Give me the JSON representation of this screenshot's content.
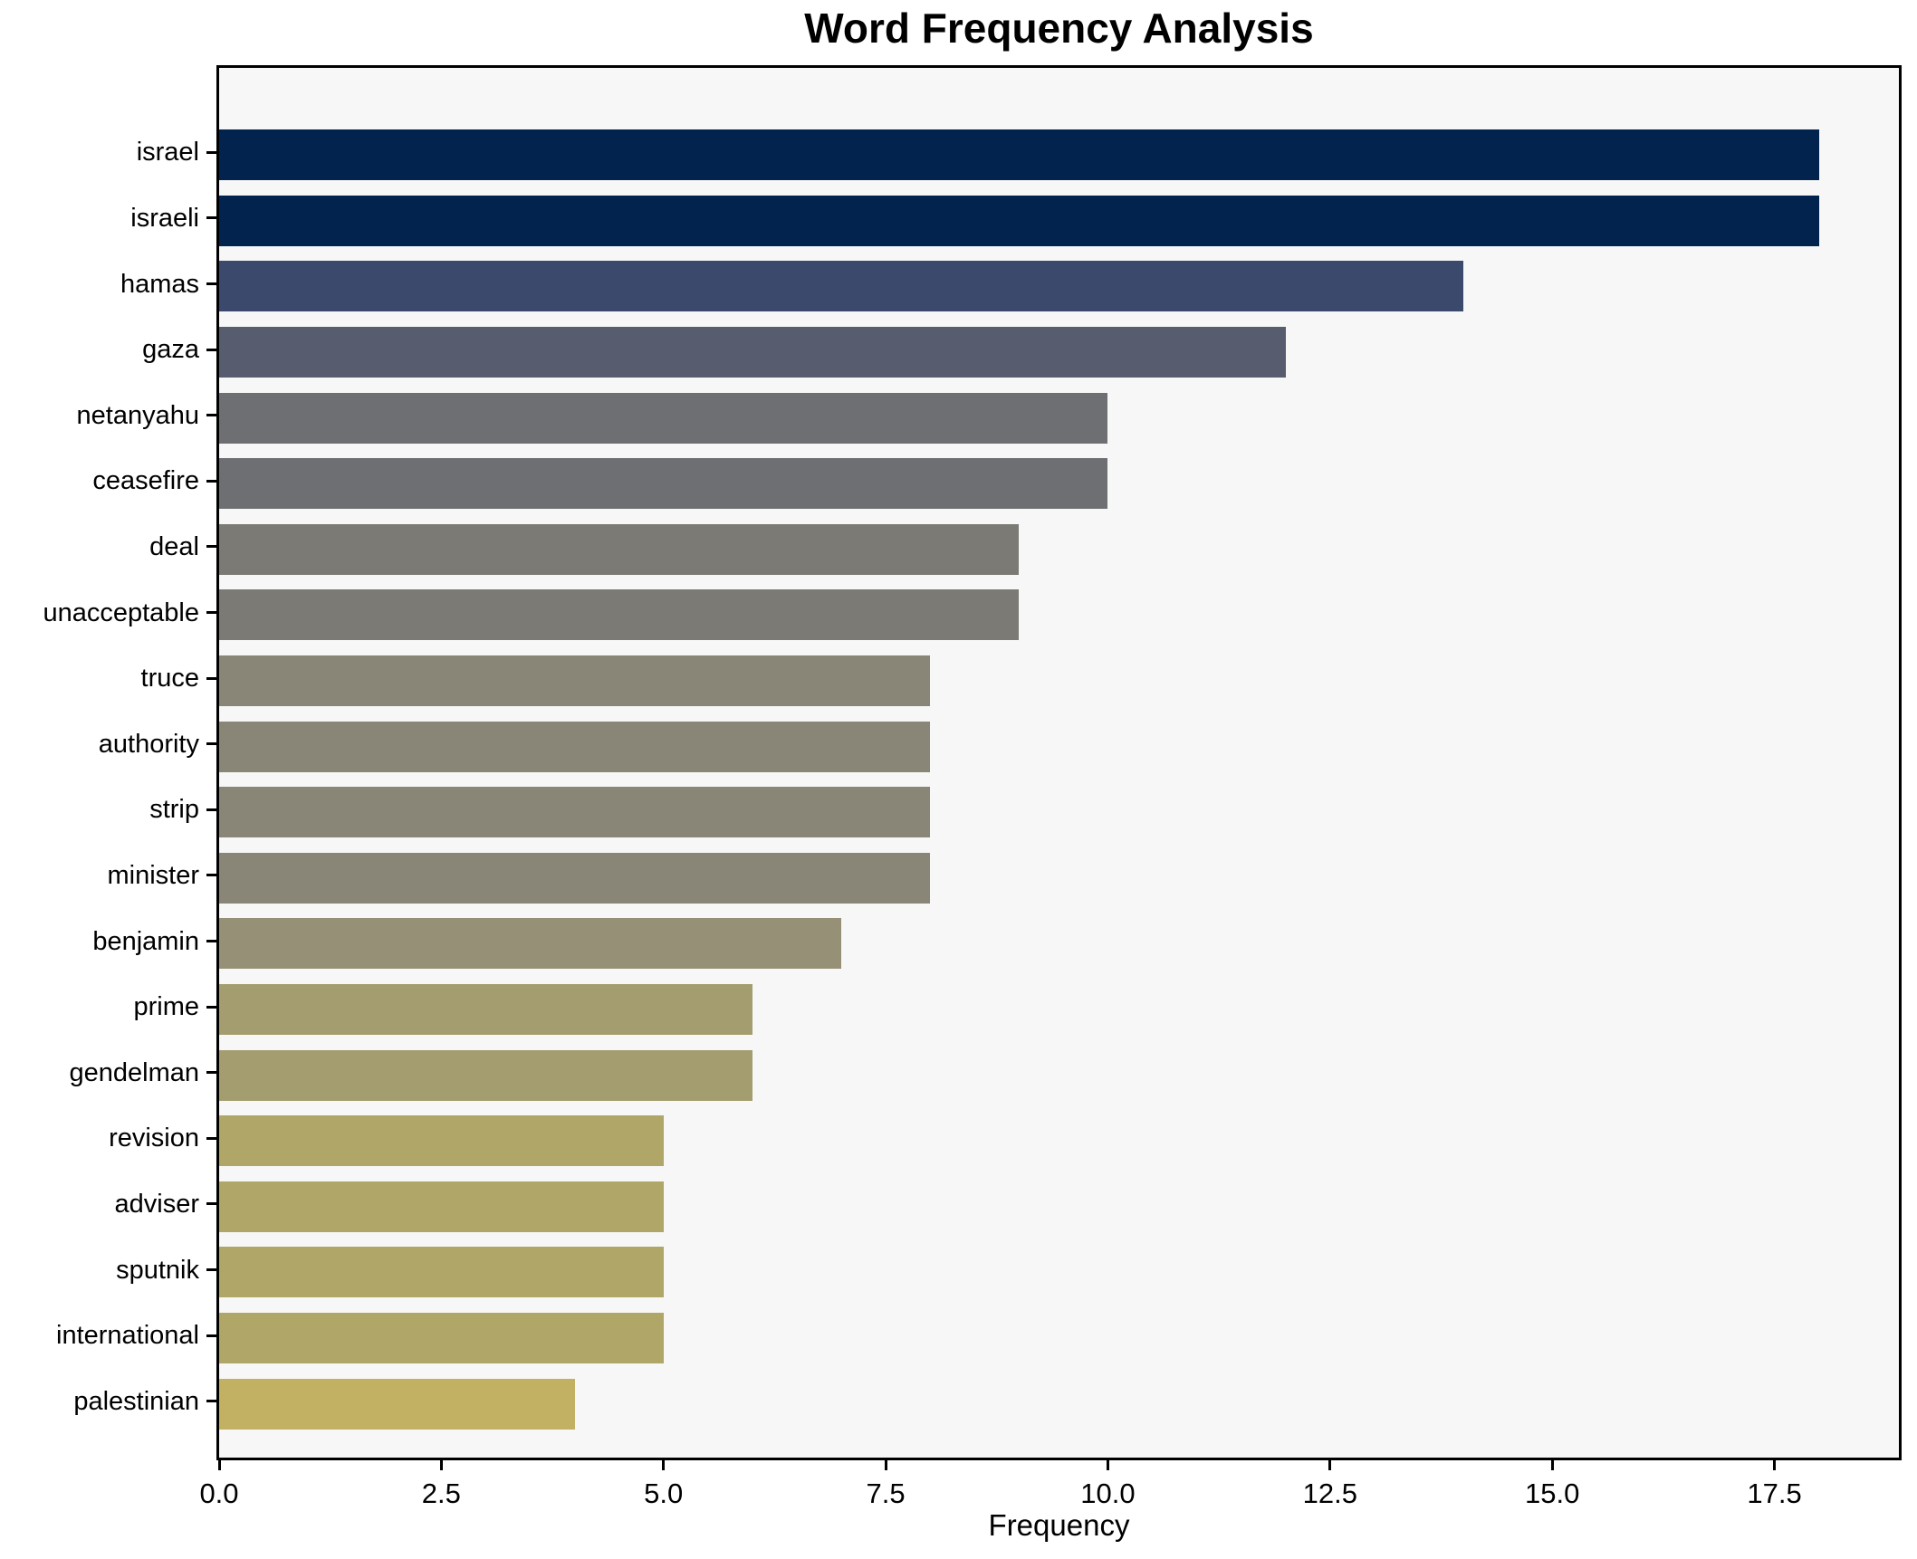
{
  "chart_data": {
    "type": "bar",
    "orientation": "horizontal",
    "title": "Word Frequency Analysis",
    "xlabel": "Frequency",
    "ylabel": "",
    "categories": [
      "israel",
      "israeli",
      "hamas",
      "gaza",
      "netanyahu",
      "ceasefire",
      "deal",
      "unacceptable",
      "truce",
      "authority",
      "strip",
      "minister",
      "benjamin",
      "prime",
      "gendelman",
      "revision",
      "adviser",
      "sputnik",
      "international",
      "palestinian"
    ],
    "values": [
      18,
      18,
      14,
      12,
      10,
      10,
      9,
      9,
      8,
      8,
      8,
      8,
      7,
      6,
      6,
      5,
      5,
      5,
      5,
      4
    ],
    "bar_colors": [
      "#02234e",
      "#02234e",
      "#3b496c",
      "#575d6f",
      "#6e6f72",
      "#6e6f72",
      "#7b7a74",
      "#7b7a74",
      "#898677",
      "#898677",
      "#898677",
      "#898677",
      "#969076",
      "#a49d6f",
      "#a49d6f",
      "#b0a667",
      "#b0a667",
      "#b0a667",
      "#b0a667",
      "#c2b163"
    ],
    "xlim": [
      0,
      18.9
    ],
    "xticks": [
      0.0,
      2.5,
      5.0,
      7.5,
      10.0,
      12.5,
      15.0,
      17.5
    ],
    "xtick_labels": [
      "0.0",
      "2.5",
      "5.0",
      "7.5",
      "10.0",
      "12.5",
      "15.0",
      "17.5"
    ],
    "grid": false,
    "legend": null,
    "plot_bg": "#f7f7f7",
    "figure_bg": "#ffffff",
    "spine_color": "#000000"
  }
}
